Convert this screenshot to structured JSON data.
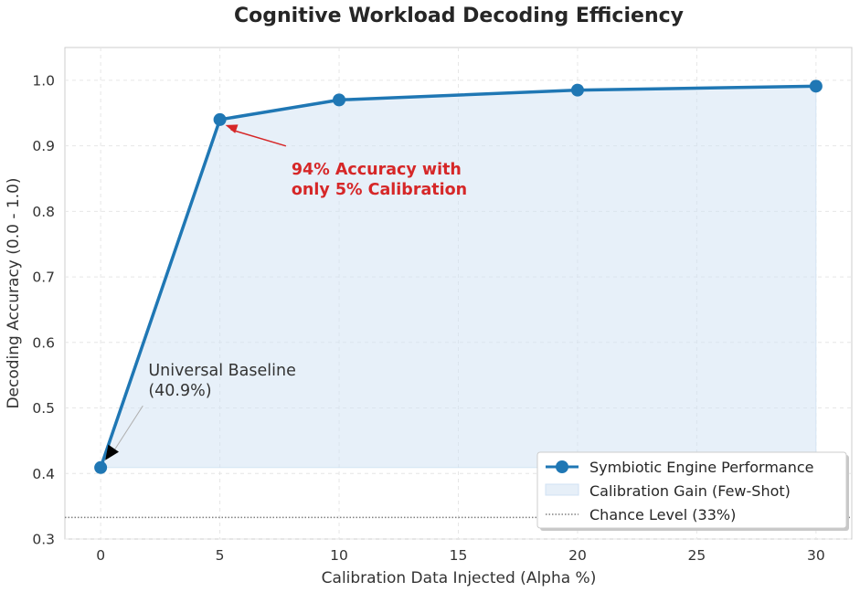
{
  "chart_data": {
    "type": "line",
    "title": "Cognitive Workload Decoding Efficiency",
    "xlabel": "Calibration Data Injected (Alpha %)",
    "ylabel": "Decoding Accuracy (0.0 - 1.0)",
    "xlim": [
      -1.5,
      31.5
    ],
    "ylim": [
      0.3,
      1.05
    ],
    "xticks": [
      0,
      5,
      10,
      15,
      20,
      25,
      30
    ],
    "yticks": [
      0.3,
      0.4,
      0.5,
      0.6,
      0.7,
      0.8,
      0.9,
      1.0
    ],
    "xtick_labels": [
      "0",
      "5",
      "10",
      "15",
      "20",
      "25",
      "30"
    ],
    "ytick_labels": [
      "0.3",
      "0.4",
      "0.5",
      "0.6",
      "0.7",
      "0.8",
      "0.9",
      "1.0"
    ],
    "grid": true,
    "series": [
      {
        "name": "Symbiotic Engine Performance",
        "x": [
          0,
          5,
          10,
          20,
          30
        ],
        "y": [
          0.409,
          0.94,
          0.97,
          0.985,
          0.991
        ],
        "color": "#1f77b4"
      }
    ],
    "fill": {
      "name": "Calibration Gain (Few-Shot)",
      "baseline": 0.409,
      "color": "#d0e2f3"
    },
    "reference_line": {
      "name": "Chance Level (33%)",
      "y": 0.333,
      "color": "#808080"
    },
    "annotations": [
      {
        "lines": [
          "94% Accuracy with",
          "only 5% Calibration"
        ],
        "point": [
          5,
          0.94
        ],
        "text_at": [
          8,
          0.83
        ],
        "color": "#d62728"
      },
      {
        "lines": [
          "Universal Baseline",
          "(40.9%)"
        ],
        "point": [
          0,
          0.409
        ],
        "text_at": [
          2,
          0.52
        ],
        "color": "#333333"
      }
    ],
    "legend": "lower-right"
  }
}
